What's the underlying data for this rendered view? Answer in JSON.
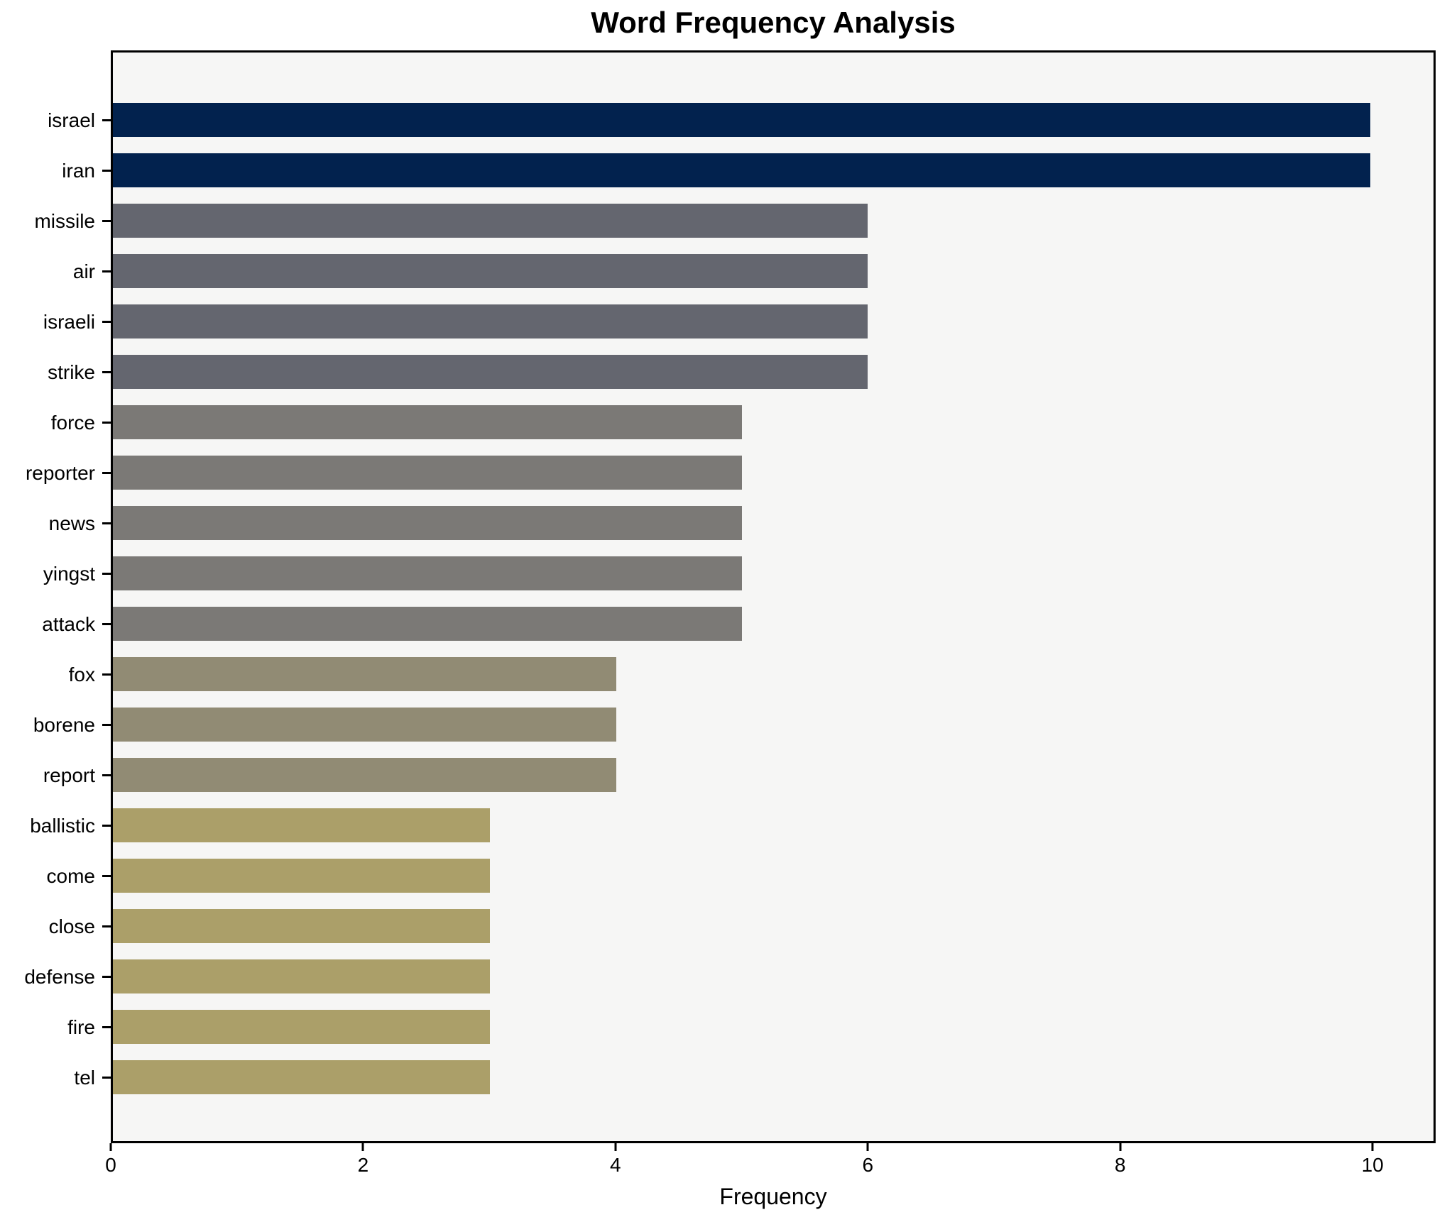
{
  "figure": {
    "background": "#ffffff",
    "plot_background": "#f6f6f5",
    "spine_color": "#000000",
    "text_color": "#000000"
  },
  "chart_data": {
    "type": "bar",
    "orientation": "horizontal",
    "title": "Word Frequency Analysis",
    "xlabel": "Frequency",
    "ylabel": "",
    "categories": [
      "israel",
      "iran",
      "missile",
      "air",
      "israeli",
      "strike",
      "force",
      "reporter",
      "news",
      "yingst",
      "attack",
      "fox",
      "borene",
      "report",
      "ballistic",
      "come",
      "close",
      "defense",
      "fire",
      "tel"
    ],
    "values": [
      10,
      10,
      6,
      6,
      6,
      6,
      5,
      5,
      5,
      5,
      5,
      4,
      4,
      4,
      3,
      3,
      3,
      3,
      3,
      3
    ],
    "colors": [
      "#02224e",
      "#02224e",
      "#64666f",
      "#64666f",
      "#64666f",
      "#64666f",
      "#7b7976",
      "#7b7976",
      "#7b7976",
      "#7b7976",
      "#7b7976",
      "#918b74",
      "#918b74",
      "#918b74",
      "#ab9f69",
      "#ab9f69",
      "#ab9f69",
      "#ab9f69",
      "#ab9f69",
      "#ab9f69"
    ],
    "xlim": [
      0,
      10.5
    ],
    "xticks": [
      0,
      2,
      4,
      6,
      8,
      10
    ],
    "grid": false,
    "legend_position": "none"
  }
}
